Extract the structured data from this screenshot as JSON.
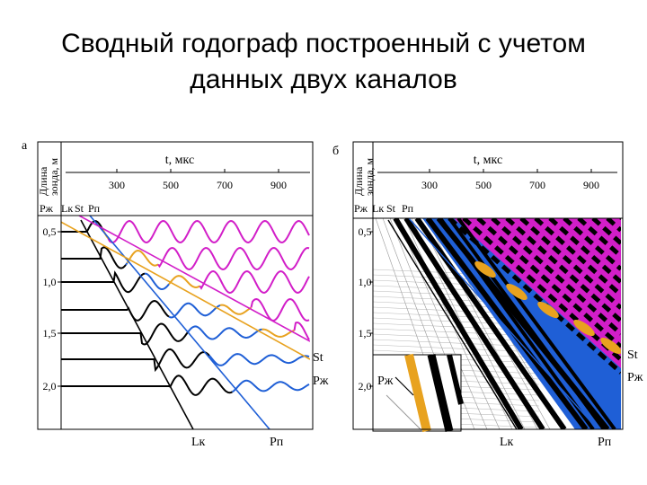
{
  "title_lines": [
    "Сводный годограф построенный с учетом",
    "данных двух каналов"
  ],
  "panels": [
    {
      "label": "а",
      "x_axis_label": "t, мкс",
      "x_ticks": [
        "300",
        "500",
        "700",
        "900"
      ],
      "y_axis_label": [
        "Длина",
        "зонда, м"
      ],
      "y_ticks": [
        "0,5",
        "1,0",
        "1,5",
        "2,0"
      ],
      "top_labels": [
        "Рж",
        "Lк",
        "St",
        "Рп"
      ],
      "line_labels": [
        "St",
        "Рж",
        "Lк",
        "Рп"
      ]
    },
    {
      "label": "б",
      "x_axis_label": "t, мкс",
      "x_ticks": [
        "300",
        "500",
        "700",
        "900"
      ],
      "y_axis_label": [
        "Длина",
        "зонда, м"
      ],
      "y_ticks": [
        "0,5",
        "1,0",
        "1,5",
        "2,0"
      ],
      "top_labels": [
        "Рж",
        "Lк",
        "St",
        "Рп"
      ],
      "line_labels": [
        "St",
        "Рж",
        "Lк",
        "Рп"
      ],
      "inset_label": "Рж"
    }
  ]
}
